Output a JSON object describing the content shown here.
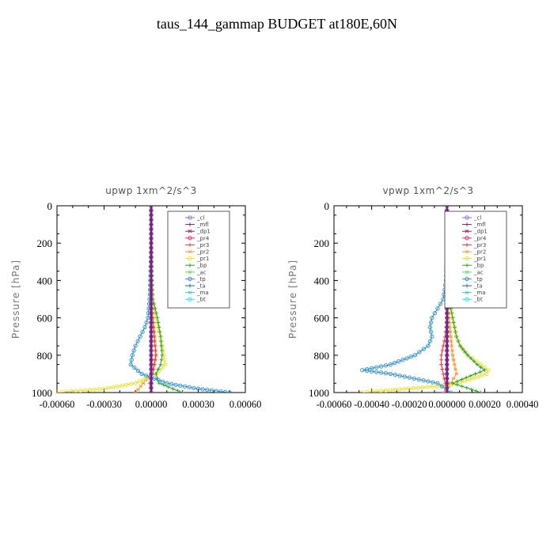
{
  "page": {
    "title": "taus_144_gammap  BUDGET at180E,60N"
  },
  "chart_data": [
    {
      "type": "line",
      "title": "upwp   1xm^2/s^3",
      "ylabel": "Pressure [hPa]",
      "xlim": [
        -0.0006,
        0.0006
      ],
      "ylim": [
        1000,
        0
      ],
      "xticks": [
        "-0.00060",
        "-0.00030",
        "0.00000",
        "0.00030",
        "0.00060"
      ],
      "xtick_values": [
        -0.0006,
        -0.0003,
        0,
        0.0003,
        0.0006
      ],
      "yticks": [
        "0",
        "200",
        "400",
        "600",
        "800",
        "1000"
      ],
      "ytick_values": [
        0,
        200,
        400,
        600,
        800,
        1000
      ],
      "legend_position": "top-right",
      "series": [
        {
          "name": "_cl",
          "color": "#8a6fcf",
          "y": [
            0,
            200,
            400,
            600,
            800,
            900,
            1000
          ],
          "x": [
            0,
            0,
            0,
            0,
            0,
            0,
            0
          ]
        },
        {
          "name": "_mfl",
          "color": "#7a1f7a",
          "y": [
            0,
            200,
            400,
            600,
            800,
            900,
            1000
          ],
          "x": [
            0,
            0,
            0,
            0,
            0,
            0,
            0
          ]
        },
        {
          "name": "_dp1",
          "color": "#a0206a",
          "y": [
            0,
            200,
            400,
            600,
            800,
            900,
            1000
          ],
          "x": [
            0,
            0,
            0,
            0,
            0,
            0,
            0
          ]
        },
        {
          "name": "_pr4",
          "color": "#e0306a",
          "y": [
            0,
            200,
            400,
            600,
            800,
            900,
            1000
          ],
          "x": [
            0,
            0,
            0,
            0,
            0,
            0,
            0
          ]
        },
        {
          "name": "_pr3",
          "color": "#ff3030",
          "y": [
            0,
            200,
            400,
            500,
            600,
            700,
            800,
            850,
            900,
            950,
            1000
          ],
          "x": [
            0,
            0,
            0,
            0,
            1e-05,
            2e-05,
            3e-05,
            2e-05,
            1e-05,
            -1e-05,
            0
          ]
        },
        {
          "name": "_pr2",
          "color": "#ff9a30",
          "y": [
            0,
            200,
            400,
            600,
            700,
            800,
            850,
            900,
            950,
            1000
          ],
          "x": [
            0,
            0,
            0,
            1e-05,
            2e-05,
            3e-05,
            2e-05,
            0,
            -5e-05,
            -0.0001
          ]
        },
        {
          "name": "_pr1",
          "color": "#e8e030",
          "y": [
            0,
            200,
            400,
            500,
            600,
            700,
            800,
            850,
            900,
            950,
            980,
            1000
          ],
          "x": [
            0,
            0,
            5e-06,
            1e-05,
            3e-05,
            6e-05,
            8e-05,
            9e-05,
            3e-05,
            -0.0001,
            -0.0003,
            -0.0006
          ]
        },
        {
          "name": "_bp",
          "color": "#30a030",
          "y": [
            0,
            200,
            400,
            500,
            600,
            700,
            800,
            850,
            900,
            950,
            1000
          ],
          "x": [
            0,
            0,
            5e-06,
            1e-05,
            4e-05,
            6e-05,
            7e-05,
            6e-05,
            3e-05,
            5e-05,
            0.0002
          ]
        },
        {
          "name": "_ac",
          "color": "#60e060",
          "y": [
            0,
            200,
            400,
            600,
            800,
            900,
            1000
          ],
          "x": [
            0,
            0,
            0,
            0,
            0,
            0,
            0
          ]
        },
        {
          "name": "_tp",
          "color": "#3090d0",
          "y": [
            0,
            200,
            400,
            500,
            600,
            650,
            700,
            750,
            800,
            850,
            900,
            950,
            980,
            1000
          ],
          "x": [
            0,
            0,
            -5e-06,
            -1e-05,
            -2e-05,
            -4e-05,
            -7e-05,
            -0.0001,
            -0.00012,
            -0.00013,
            -6e-05,
            0.0001,
            0.0003,
            0.0005
          ]
        },
        {
          "name": "_ta",
          "color": "#2060c0",
          "y": [
            0,
            200,
            400,
            600,
            800,
            900,
            1000
          ],
          "x": [
            0,
            0,
            0,
            0,
            0,
            0,
            0
          ]
        },
        {
          "name": "_ma",
          "color": "#40c0d0",
          "y": [
            0,
            200,
            400,
            600,
            800,
            900,
            1000
          ],
          "x": [
            0,
            0,
            0,
            0,
            0,
            0,
            0
          ]
        },
        {
          "name": "_bt",
          "color": "#30e0e0",
          "y": [
            0,
            200,
            400,
            600,
            800,
            900,
            1000
          ],
          "x": [
            0,
            0,
            0,
            0,
            0,
            0,
            0
          ]
        }
      ]
    },
    {
      "type": "line",
      "title": "vpwp   1xm^2/s^3",
      "ylabel": "Pressure [hPa]",
      "xlim": [
        -0.0006,
        0.0004
      ],
      "ylim": [
        1000,
        0
      ],
      "xticks": [
        "-0.00060",
        "-0.00040",
        "-0.00020",
        "0.000000",
        "0.00020",
        "0.00040"
      ],
      "xtick_values": [
        -0.0006,
        -0.0004,
        -0.0002,
        0,
        0.0002,
        0.0004
      ],
      "yticks": [
        "0",
        "200",
        "400",
        "600",
        "800",
        "1000"
      ],
      "ytick_values": [
        0,
        200,
        400,
        600,
        800,
        1000
      ],
      "legend_position": "top-right",
      "series": [
        {
          "name": "_cl",
          "color": "#8a6fcf",
          "y": [
            0,
            200,
            400,
            600,
            800,
            900,
            1000
          ],
          "x": [
            0,
            0,
            0,
            0,
            0,
            0,
            0
          ]
        },
        {
          "name": "_mfl",
          "color": "#7a1f7a",
          "y": [
            0,
            200,
            400,
            600,
            800,
            900,
            1000
          ],
          "x": [
            0,
            0,
            0,
            0,
            0,
            0,
            0
          ]
        },
        {
          "name": "_dp1",
          "color": "#a0206a",
          "y": [
            0,
            200,
            400,
            600,
            800,
            900,
            1000
          ],
          "x": [
            0,
            0,
            0,
            0,
            0,
            0,
            0
          ]
        },
        {
          "name": "_pr4",
          "color": "#e0306a",
          "y": [
            0,
            200,
            400,
            600,
            800,
            900,
            1000
          ],
          "x": [
            0,
            0,
            0,
            0,
            0,
            0,
            0
          ]
        },
        {
          "name": "_pr3",
          "color": "#ff3030",
          "y": [
            0,
            200,
            400,
            600,
            700,
            800,
            850,
            900,
            950,
            1000
          ],
          "x": [
            0,
            0,
            0,
            0,
            -1e-05,
            -3e-05,
            -3e-05,
            -2e-05,
            -1e-05,
            0
          ]
        },
        {
          "name": "_pr2",
          "color": "#ff9a30",
          "y": [
            0,
            200,
            400,
            600,
            800,
            900,
            950,
            1000
          ],
          "x": [
            0,
            0,
            0,
            1e-05,
            3e-05,
            5e-05,
            2e-05,
            -2e-05
          ]
        },
        {
          "name": "_pr1",
          "color": "#e8e030",
          "y": [
            0,
            200,
            400,
            500,
            600,
            650,
            700,
            750,
            800,
            850,
            880,
            900,
            930,
            960,
            1000
          ],
          "x": [
            0,
            0,
            0,
            1e-05,
            3e-05,
            4e-05,
            5e-05,
            7e-05,
            0.00011,
            0.00018,
            0.00022,
            0.00021,
            0.00012,
            2e-05,
            -0.00045
          ]
        },
        {
          "name": "_bp",
          "color": "#30a030",
          "y": [
            0,
            200,
            400,
            500,
            600,
            650,
            700,
            750,
            800,
            850,
            880,
            900,
            950,
            1000
          ],
          "x": [
            0,
            0,
            0,
            1e-05,
            3e-05,
            4e-05,
            5e-05,
            7e-05,
            0.00011,
            0.00016,
            0.0002,
            0.00015,
            3e-05,
            0.00018
          ]
        },
        {
          "name": "_ac",
          "color": "#60e060",
          "y": [
            0,
            200,
            400,
            600,
            800,
            900,
            1000
          ],
          "x": [
            0,
            0,
            0,
            0,
            0,
            0,
            0
          ]
        },
        {
          "name": "_tp",
          "color": "#3090d0",
          "y": [
            0,
            200,
            400,
            500,
            550,
            600,
            650,
            700,
            750,
            800,
            850,
            880,
            900,
            950,
            1000
          ],
          "x": [
            0,
            0,
            -5e-06,
            -2e-05,
            -5e-05,
            -8e-05,
            -9e-05,
            -8e-05,
            -0.0001,
            -0.00017,
            -0.0003,
            -0.00045,
            -0.0003,
            -5e-05,
            2e-05
          ]
        },
        {
          "name": "_ta",
          "color": "#2060c0",
          "y": [
            0,
            200,
            400,
            600,
            800,
            900,
            1000
          ],
          "x": [
            0,
            0,
            0,
            0,
            0,
            0,
            0
          ]
        },
        {
          "name": "_ma",
          "color": "#40c0d0",
          "y": [
            0,
            200,
            400,
            600,
            800,
            900,
            1000
          ],
          "x": [
            0,
            0,
            0,
            0,
            0,
            0,
            0
          ]
        },
        {
          "name": "_bt",
          "color": "#30e0e0",
          "y": [
            0,
            200,
            400,
            600,
            800,
            900,
            1000
          ],
          "x": [
            0,
            0,
            0,
            0,
            0,
            0,
            0
          ]
        }
      ]
    }
  ]
}
